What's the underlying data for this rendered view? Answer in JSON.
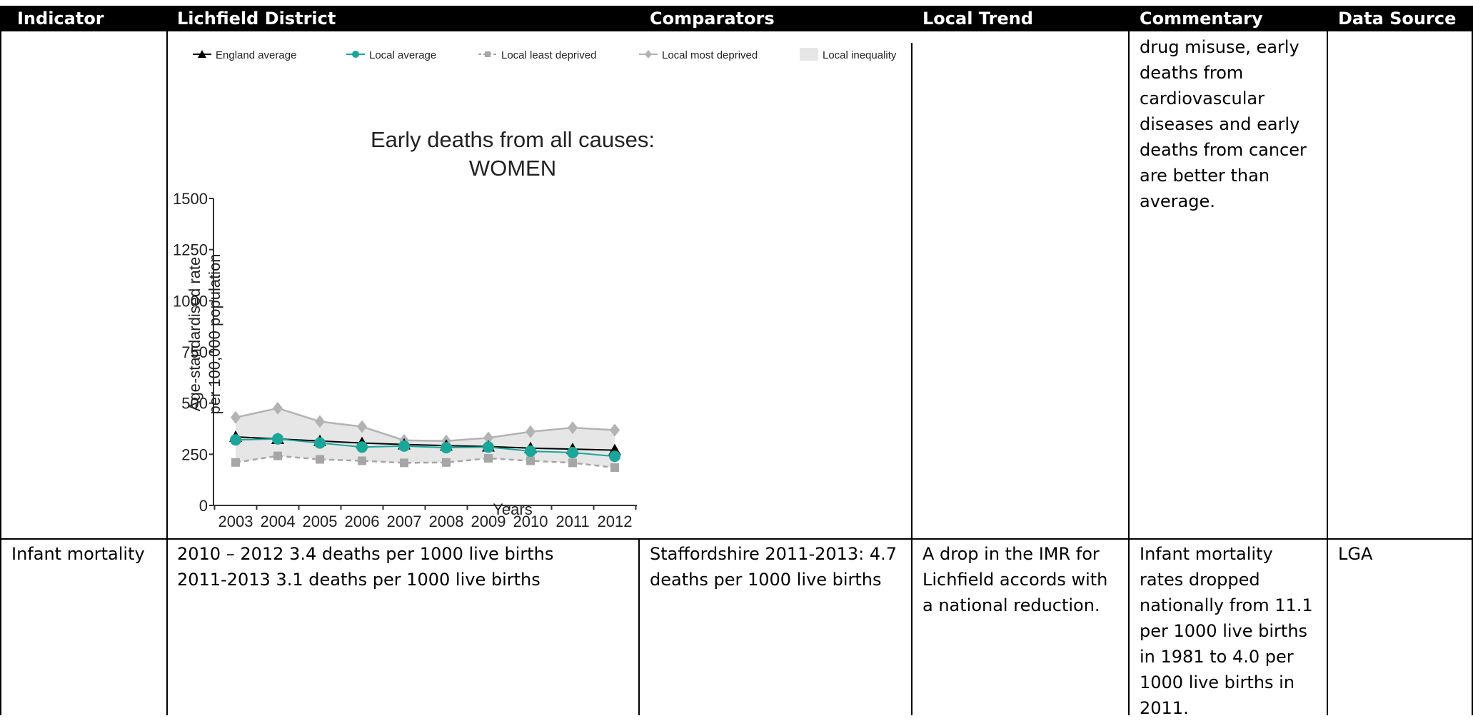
{
  "header": {
    "indicator": "Indicator",
    "district": "Lichfield District",
    "comparators": "Comparators",
    "trend": "Local Trend",
    "commentary": "Commentary",
    "source": "Data Source"
  },
  "row1": {
    "commentary": "drug misuse, early\ndeaths from\ncardiovascular\ndiseases and early\ndeaths from cancer\nare better than\naverage."
  },
  "row2": {
    "indicator": "Infant mortality",
    "district": "2010 – 2012 3.4 deaths per 1000 live births\n2011-2013 3.1 deaths per 1000 live births",
    "comparators": "Staffordshire 2011-2013: 4.7\ndeaths per 1000 live births",
    "trend": "A drop in the IMR for\nLichfield accords with\na national reduction.",
    "commentary": "Infant mortality\nrates dropped\nnationally from 11.1\nper 1000 live births\nin 1981 to 4.0 per\n1000 live births in\n2011.",
    "source": "LGA"
  },
  "chart_data": {
    "type": "line",
    "title": "Early deaths from all causes:",
    "subtitle": "WOMEN",
    "xlabel": "Years",
    "ylabel": "Age-standardised rate per 100,000 population",
    "ylabel_line1": "Age-standardised rate",
    "ylabel_line2": "per 100,000 population",
    "ylim": [
      0,
      1500
    ],
    "yticks": [
      0,
      250,
      500,
      750,
      1000,
      1250,
      1500
    ],
    "ytick_labels": [
      "0",
      "250",
      "500",
      "750",
      "1000",
      "1250",
      "1500"
    ],
    "categories": [
      "2003",
      "2004",
      "2005",
      "2006",
      "2007",
      "2008",
      "2009",
      "2010",
      "2011",
      "2012"
    ],
    "legend_placement": "top",
    "legend": [
      "England average",
      "Local average",
      "Local least deprived",
      "Local most deprived",
      "Local inequality"
    ],
    "series": [
      {
        "name": "England average",
        "color": "#000000",
        "marker": "triangle",
        "values": [
          335,
          325,
          315,
          305,
          298,
          292,
          288,
          280,
          275,
          270
        ]
      },
      {
        "name": "Local average",
        "color": "#1aa79a",
        "marker": "circle",
        "values": [
          320,
          325,
          305,
          285,
          290,
          282,
          285,
          265,
          258,
          240
        ]
      },
      {
        "name": "Local least deprived",
        "color": "#a6a6a6",
        "marker": "square",
        "values": [
          210,
          242,
          225,
          218,
          208,
          210,
          230,
          218,
          208,
          185
        ]
      },
      {
        "name": "Local most deprived",
        "color": "#b3b3b3",
        "marker": "diamond",
        "values": [
          430,
          475,
          410,
          385,
          318,
          315,
          330,
          360,
          380,
          368
        ]
      }
    ],
    "band": {
      "name": "Local inequality",
      "color": "#e6e6e6",
      "lower_series": "Local least deprived",
      "upper_series": "Local most deprived"
    }
  }
}
